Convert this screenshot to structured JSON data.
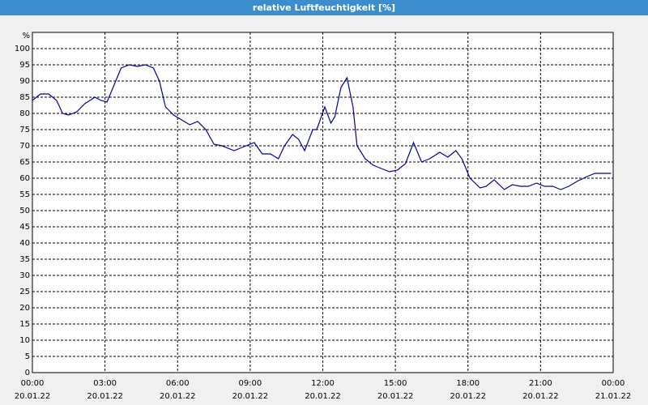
{
  "chart_data": {
    "type": "line",
    "title": "relative Luftfeuchtigkeit [%]",
    "ylabel": "%",
    "x": [
      "20.01.22 00:00",
      "20.01.22 00:20",
      "20.01.22 00:40",
      "20.01.22 01:00",
      "20.01.22 01:15",
      "20.01.22 01:30",
      "20.01.22 01:50",
      "20.01.22 02:10",
      "20.01.22 02:35",
      "20.01.22 02:50",
      "20.01.22 03:05",
      "20.01.22 03:20",
      "20.01.22 03:40",
      "20.01.22 04:00",
      "20.01.22 04:20",
      "20.01.22 04:40",
      "20.01.22 05:00",
      "20.01.22 05:15",
      "20.01.22 05:30",
      "20.01.22 05:50",
      "20.01.22 06:10",
      "20.01.22 06:30",
      "20.01.22 06:50",
      "20.01.22 07:10",
      "20.01.22 07:30",
      "20.01.22 07:50",
      "20.01.22 08:20",
      "20.01.22 08:40",
      "20.01.22 09:10",
      "20.01.22 09:30",
      "20.01.22 09:50",
      "20.01.22 10:10",
      "20.01.22 10:25",
      "20.01.22 10:45",
      "20.01.22 11:00",
      "20.01.22 11:15",
      "20.01.22 11:35",
      "20.01.22 11:45",
      "20.01.22 12:05",
      "20.01.22 12:20",
      "20.01.22 12:30",
      "20.01.22 12:45",
      "20.01.22 13:00",
      "20.01.22 13:15",
      "20.01.22 13:25",
      "20.01.22 13:45",
      "20.01.22 14:05",
      "20.01.22 14:25",
      "20.01.22 14:45",
      "20.01.22 15:05",
      "20.01.22 15:25",
      "20.01.22 15:45",
      "20.01.22 16:05",
      "20.01.22 16:25",
      "20.01.22 16:50",
      "20.01.22 17:10",
      "20.01.22 17:30",
      "20.01.22 17:45",
      "20.01.22 18:05",
      "20.01.22 18:30",
      "20.01.22 18:45",
      "20.01.22 19:05",
      "20.01.22 19:30",
      "20.01.22 19:50",
      "20.01.22 20:10",
      "20.01.22 20:30",
      "20.01.22 20:50",
      "20.01.22 21:10",
      "20.01.22 21:30",
      "20.01.22 21:50",
      "20.01.22 22:10",
      "20.01.22 22:30",
      "20.01.22 22:55",
      "20.01.22 23:15",
      "20.01.22 23:55"
    ],
    "series": [
      {
        "name": "relative Luftfeuchtigkeit",
        "color": "#0000a0",
        "values": [
          84,
          86,
          86,
          84,
          80,
          79.5,
          80.5,
          83,
          85,
          84,
          83.5,
          88,
          94,
          95,
          94.5,
          95,
          94,
          90,
          82,
          79.5,
          78,
          76.5,
          77.5,
          75,
          70.5,
          70,
          68.5,
          69.5,
          71,
          67.5,
          67.5,
          66,
          70,
          73.5,
          72,
          68.5,
          75,
          75,
          82,
          77,
          79,
          88,
          91,
          82,
          70,
          66,
          64,
          63,
          62,
          62.5,
          64.5,
          71,
          65,
          66,
          68,
          66.5,
          68.5,
          66,
          60,
          57,
          57.5,
          59.5,
          56.5,
          58,
          57.5,
          57.5,
          58.5,
          57.5,
          57.5,
          56.5,
          57.5,
          59,
          60.5,
          61.5,
          61.5
        ]
      }
    ],
    "xlim": [
      "20.01.22 00:00",
      "21.01.22 00:00"
    ],
    "xticks": [
      {
        "value": "20.01.22 00:00",
        "label": [
          "00:00",
          "20.01.22"
        ]
      },
      {
        "value": "20.01.22 03:00",
        "label": [
          "03:00",
          "20.01.22"
        ]
      },
      {
        "value": "20.01.22 06:00",
        "label": [
          "06:00",
          "20.01.22"
        ]
      },
      {
        "value": "20.01.22 09:00",
        "label": [
          "09:00",
          "20.01.22"
        ]
      },
      {
        "value": "20.01.22 12:00",
        "label": [
          "12:00",
          "20.01.22"
        ]
      },
      {
        "value": "20.01.22 15:00",
        "label": [
          "15:00",
          "20.01.22"
        ]
      },
      {
        "value": "20.01.22 18:00",
        "label": [
          "18:00",
          "20.01.22"
        ]
      },
      {
        "value": "20.01.22 21:00",
        "label": [
          "21:00",
          "20.01.22"
        ]
      },
      {
        "value": "21.01.22 00:00",
        "label": [
          "00:00",
          "21.01.22"
        ]
      }
    ],
    "ylim": [
      0,
      105
    ],
    "yticks": [
      0,
      5,
      10,
      15,
      20,
      25,
      30,
      35,
      40,
      45,
      50,
      55,
      60,
      65,
      70,
      75,
      80,
      85,
      90,
      95,
      100
    ],
    "grid": true
  }
}
